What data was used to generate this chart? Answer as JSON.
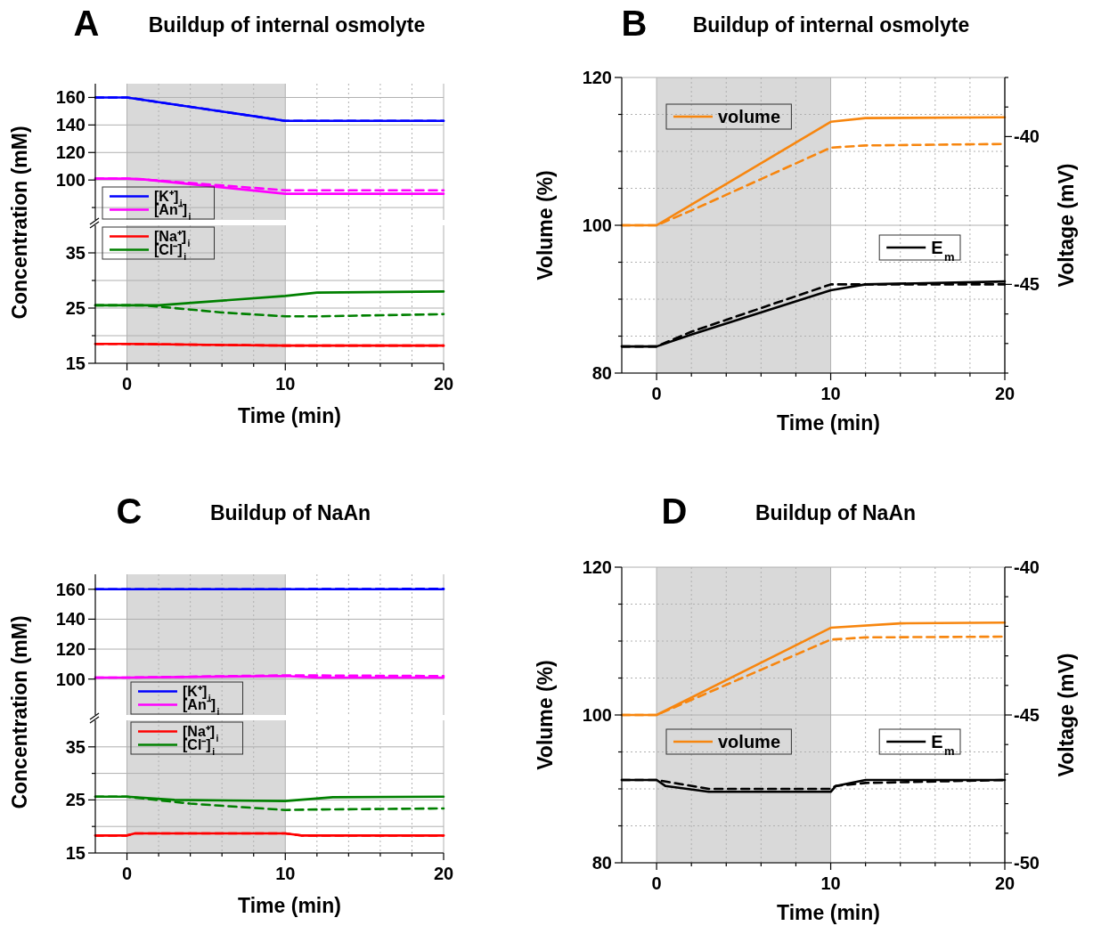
{
  "chart_data": [
    {
      "type": "line",
      "title": "Buildup of internal osmolyte",
      "annotations": [
        "A"
      ],
      "ylabel": "Concentration (mM)",
      "xlim": [
        -2,
        20
      ],
      "xticks": [
        0,
        {
          "value": 2,
          "label": null
        },
        {
          "value": 4,
          "label": null
        },
        {
          "value": 6,
          "label": null
        },
        {
          "value": 8,
          "label": null
        },
        10,
        {
          "value": 12,
          "label": null
        },
        {
          "value": 14,
          "label": null
        },
        {
          "value": 16,
          "label": null
        },
        {
          "value": 18,
          "label": null
        },
        20
      ],
      "ylim": [
        71,
        170
      ],
      "yticks": [
        {
          "value": 80,
          "label": null
        },
        100,
        120,
        140,
        160
      ],
      "tick_labels": "y",
      "grid": true,
      "legend": "bottom left",
      "bands": [
        {
          "axis": "x",
          "from": 0,
          "to": 10,
          "color": "#d9d9d9"
        }
      ],
      "series": [
        {
          "name": "[K⁺]$_{i}$",
          "color": "#0000ff",
          "x": [
            -2,
            0,
            10,
            12,
            20
          ],
          "values": [
            160,
            160,
            143,
            143,
            143
          ]
        },
        {
          "color": "#0000ff",
          "line_style": "dashed",
          "x": [
            -2,
            0,
            10,
            12,
            20
          ],
          "values": [
            160,
            160,
            143,
            143,
            143
          ]
        },
        {
          "name": "[An⁻]$_{i}$",
          "color": "#ff00ff",
          "x": [
            -2,
            0,
            1,
            10,
            20
          ],
          "values": [
            101,
            101,
            100.5,
            90,
            90
          ]
        },
        {
          "color": "#ff00ff",
          "line_style": "dashed",
          "x": [
            -2,
            0,
            1,
            10,
            12,
            20
          ],
          "values": [
            101,
            101,
            100.5,
            92.5,
            92.5,
            92.5
          ]
        }
      ]
    },
    {
      "type": "line",
      "xlabel": "Time (min)",
      "xlim": [
        -2,
        20
      ],
      "xticks": [
        0,
        {
          "value": 2,
          "label": null
        },
        {
          "value": 4,
          "label": null
        },
        {
          "value": 6,
          "label": null
        },
        {
          "value": 8,
          "label": null
        },
        10,
        {
          "value": 12,
          "label": null
        },
        {
          "value": 14,
          "label": null
        },
        {
          "value": 16,
          "label": null
        },
        {
          "value": 18,
          "label": null
        },
        20
      ],
      "ylim": [
        15,
        40
      ],
      "yticks": [
        15,
        {
          "value": 20,
          "label": null
        },
        25,
        {
          "value": 30,
          "label": null
        },
        35
      ],
      "grid": true,
      "legend": "top left",
      "bands": [
        {
          "axis": "x",
          "from": 0,
          "to": 10,
          "color": "#d9d9d9"
        }
      ],
      "series": [
        {
          "name": "[Na⁺]$_{i}$",
          "color": "#ff0000",
          "x": [
            -2,
            0,
            10,
            20
          ],
          "values": [
            18.5,
            18.5,
            18.2,
            18.2
          ]
        },
        {
          "color": "#ff0000",
          "line_style": "dashed",
          "x": [
            -2,
            0,
            10,
            20
          ],
          "values": [
            18.5,
            18.5,
            18.2,
            18.2
          ]
        },
        {
          "name": "[Cl⁻]$_{i}$",
          "color": "#008000",
          "x": [
            -2,
            2,
            10,
            12,
            20
          ],
          "values": [
            25.5,
            25.5,
            27.2,
            27.8,
            28
          ]
        },
        {
          "color": "#008000",
          "line_style": "dashed",
          "x": [
            -2,
            1,
            3,
            6,
            10,
            12,
            20
          ],
          "values": [
            25.5,
            25.5,
            25,
            24.2,
            23.5,
            23.5,
            23.9
          ]
        }
      ]
    },
    {
      "type": "line",
      "title": "Buildup of internal osmolyte",
      "annotations": [
        "B"
      ],
      "xlabel": "Time (min)",
      "ylabel": "Volume (%)",
      "y2label": "Voltage (mV)",
      "xlim": [
        -2,
        20
      ],
      "xticks": [
        0,
        {
          "value": 2,
          "label": null
        },
        {
          "value": 4,
          "label": null
        },
        {
          "value": 6,
          "label": null
        },
        {
          "value": 8,
          "label": null
        },
        10,
        {
          "value": 12,
          "label": null
        },
        {
          "value": 14,
          "label": null
        },
        {
          "value": 16,
          "label": null
        },
        {
          "value": 18,
          "label": null
        },
        20
      ],
      "ylim": [
        80,
        120
      ],
      "yticks": [
        80,
        {
          "value": 85,
          "label": null
        },
        {
          "value": 90,
          "label": null
        },
        {
          "value": 95,
          "label": null
        },
        100,
        {
          "value": 105,
          "label": null
        },
        {
          "value": 110,
          "label": null
        },
        {
          "value": 115,
          "label": null
        },
        120
      ],
      "y2lim": [
        -48,
        -38
      ],
      "y2ticks": [
        {
          "value": -48,
          "label": null
        },
        {
          "value": -47,
          "label": null
        },
        {
          "value": -46,
          "label": null
        },
        -45,
        {
          "value": -44,
          "label": null
        },
        {
          "value": -43,
          "label": null
        },
        {
          "value": -42,
          "label": null
        },
        {
          "value": -41,
          "label": null
        },
        -40,
        {
          "value": -39,
          "label": null
        },
        {
          "value": -38,
          "label": null
        }
      ],
      "grid": true,
      "legend": "top left",
      "bands": [
        {
          "axis": "x",
          "from": 0,
          "to": 10,
          "color": "#d9d9d9"
        }
      ],
      "series": [
        {
          "name": "volume",
          "color": "#f7860f",
          "x": [
            -2,
            0,
            10,
            12,
            20
          ],
          "values": [
            100,
            100,
            114,
            114.5,
            114.6
          ]
        },
        {
          "color": "#f7860f",
          "line_style": "dashed",
          "x": [
            -2,
            0,
            2,
            10,
            12,
            20
          ],
          "values": [
            100,
            100,
            102,
            110.5,
            110.8,
            111
          ]
        },
        {
          "name": "E$_{m}$",
          "color": "#000000",
          "axis": "y2",
          "x": [
            -2,
            0,
            2,
            10,
            12,
            20
          ],
          "values": [
            -47.1,
            -47.1,
            -46.7,
            -45.2,
            -45.0,
            -44.9
          ]
        },
        {
          "color": "#000000",
          "axis": "y2",
          "line_style": "dashed",
          "x": [
            -2,
            0,
            2,
            10,
            12,
            20
          ],
          "values": [
            -47.1,
            -47.1,
            -46.6,
            -45.0,
            -45.0,
            -45.0
          ]
        }
      ]
    },
    {
      "type": "line",
      "title": "Buildup of NaAn",
      "annotations": [
        "C"
      ],
      "ylabel": "Concentration (mM)",
      "xlim": [
        -2,
        20
      ],
      "xticks": [
        0,
        {
          "value": 2,
          "label": null
        },
        {
          "value": 4,
          "label": null
        },
        {
          "value": 6,
          "label": null
        },
        {
          "value": 8,
          "label": null
        },
        10,
        {
          "value": 12,
          "label": null
        },
        {
          "value": 14,
          "label": null
        },
        {
          "value": 16,
          "label": null
        },
        {
          "value": 18,
          "label": null
        },
        20
      ],
      "ylim": [
        76,
        170
      ],
      "yticks": [
        100,
        120,
        140,
        160
      ],
      "tick_labels": "y",
      "grid": true,
      "legend": "bottom left",
      "bands": [
        {
          "axis": "x",
          "from": 0,
          "to": 10,
          "color": "#d9d9d9"
        }
      ],
      "series": [
        {
          "name": "[K⁺]$_{i}$",
          "color": "#0000ff",
          "x": [
            -2,
            20
          ],
          "values": [
            160,
            160
          ]
        },
        {
          "color": "#0000ff",
          "line_style": "dashed",
          "x": [
            -2,
            8,
            20
          ],
          "values": [
            160,
            160,
            160.3
          ]
        },
        {
          "name": "[An⁻]$_{i}$",
          "color": "#ff00ff",
          "x": [
            -2,
            0,
            10,
            12,
            20
          ],
          "values": [
            101,
            101,
            102,
            101,
            101
          ]
        },
        {
          "color": "#ff00ff",
          "line_style": "dashed",
          "x": [
            -2,
            0,
            10,
            20
          ],
          "values": [
            101,
            101,
            102.5,
            102
          ]
        }
      ]
    },
    {
      "type": "line",
      "xlabel": "Time (min)",
      "xlim": [
        -2,
        20
      ],
      "xticks": [
        0,
        {
          "value": 2,
          "label": null
        },
        {
          "value": 4,
          "label": null
        },
        {
          "value": 6,
          "label": null
        },
        {
          "value": 8,
          "label": null
        },
        10,
        {
          "value": 12,
          "label": null
        },
        {
          "value": 14,
          "label": null
        },
        {
          "value": 16,
          "label": null
        },
        {
          "value": 18,
          "label": null
        },
        20
      ],
      "ylim": [
        15,
        40
      ],
      "yticks": [
        15,
        {
          "value": 20,
          "label": null
        },
        25,
        {
          "value": 30,
          "label": null
        },
        35
      ],
      "grid": true,
      "legend": "top left",
      "bands": [
        {
          "axis": "x",
          "from": 0,
          "to": 10,
          "color": "#d9d9d9"
        }
      ],
      "series": [
        {
          "name": "[Na⁺]$_{i}$",
          "color": "#ff0000",
          "x": [
            -2,
            0,
            0.5,
            10,
            11,
            20
          ],
          "values": [
            18.3,
            18.3,
            18.7,
            18.7,
            18.3,
            18.3
          ]
        },
        {
          "color": "#ff0000",
          "line_style": "dashed",
          "x": [
            -2,
            0,
            0.5,
            10,
            11,
            20
          ],
          "values": [
            18.3,
            18.3,
            18.7,
            18.7,
            18.3,
            18.3
          ]
        },
        {
          "name": "[Cl⁻]$_{i}$",
          "color": "#008000",
          "x": [
            -2,
            0,
            3,
            10,
            13,
            20
          ],
          "values": [
            25.6,
            25.6,
            25,
            24.8,
            25.5,
            25.6
          ]
        },
        {
          "color": "#008000",
          "line_style": "dashed",
          "x": [
            -2,
            0,
            4,
            10,
            12,
            20
          ],
          "values": [
            25.6,
            25.6,
            24.3,
            23.1,
            23.2,
            23.4
          ]
        }
      ]
    },
    {
      "type": "line",
      "title": "Buildup of NaAn",
      "annotations": [
        "D"
      ],
      "xlabel": "Time (min)",
      "ylabel": "Volume (%)",
      "y2label": "Voltage (mV)",
      "xlim": [
        -2,
        20
      ],
      "xticks": [
        0,
        {
          "value": 2,
          "label": null
        },
        {
          "value": 4,
          "label": null
        },
        {
          "value": 6,
          "label": null
        },
        {
          "value": 8,
          "label": null
        },
        10,
        {
          "value": 12,
          "label": null
        },
        {
          "value": 14,
          "label": null
        },
        {
          "value": 16,
          "label": null
        },
        {
          "value": 18,
          "label": null
        },
        20
      ],
      "ylim": [
        80,
        120
      ],
      "yticks": [
        80,
        {
          "value": 85,
          "label": null
        },
        {
          "value": 90,
          "label": null
        },
        {
          "value": 95,
          "label": null
        },
        100,
        {
          "value": 105,
          "label": null
        },
        {
          "value": 110,
          "label": null
        },
        {
          "value": 115,
          "label": null
        },
        120
      ],
      "y2lim": [
        -50,
        -40
      ],
      "y2ticks": [
        -50,
        {
          "value": -49,
          "label": null
        },
        {
          "value": -48,
          "label": null
        },
        {
          "value": -47,
          "label": null
        },
        {
          "value": -46,
          "label": null
        },
        -45,
        {
          "value": -44,
          "label": null
        },
        {
          "value": -43,
          "label": null
        },
        {
          "value": -42,
          "label": null
        },
        {
          "value": -41,
          "label": null
        },
        -40
      ],
      "grid": true,
      "legend": "left",
      "bands": [
        {
          "axis": "x",
          "from": 0,
          "to": 10,
          "color": "#d9d9d9"
        }
      ],
      "series": [
        {
          "name": "volume",
          "color": "#f7860f",
          "x": [
            -2,
            0,
            10,
            14,
            20
          ],
          "values": [
            100,
            100,
            111.8,
            112.4,
            112.5
          ]
        },
        {
          "color": "#f7860f",
          "line_style": "dashed",
          "x": [
            -2,
            0,
            10,
            12,
            20
          ],
          "values": [
            100,
            100,
            110.2,
            110.5,
            110.6
          ]
        },
        {
          "name": "E$_{m}$",
          "color": "#000000",
          "axis": "y2",
          "x": [
            -2,
            0,
            0.5,
            3,
            10,
            10.3,
            12,
            20
          ],
          "values": [
            -47.2,
            -47.2,
            -47.4,
            -47.6,
            -47.6,
            -47.4,
            -47.2,
            -47.2
          ]
        },
        {
          "color": "#000000",
          "axis": "y2",
          "line_style": "dashed",
          "x": [
            -2,
            0,
            3,
            10,
            10.3,
            12,
            20
          ],
          "values": [
            -47.2,
            -47.2,
            -47.5,
            -47.5,
            -47.4,
            -47.3,
            -47.2
          ]
        }
      ]
    }
  ]
}
